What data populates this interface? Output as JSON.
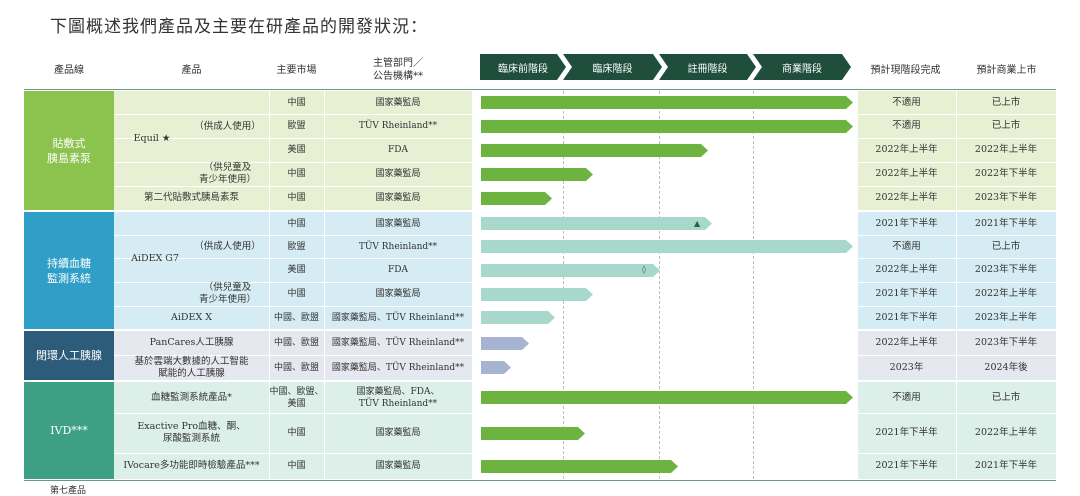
{
  "title": "下圖概述我們產品及主要在研產品的開發狀況：",
  "headers": {
    "product_line": "產品線",
    "product": "產品",
    "market": "主要市場",
    "authority": "主管部門／\n公告機構**",
    "current_stage": "預計現階段完成",
    "commercial": "預計商業上市"
  },
  "stages": [
    "臨床前階段",
    "臨床階段",
    "註冊階段",
    "商業階段"
  ],
  "colors": {
    "group1": "#8cc24e",
    "group2": "#2f9fc8",
    "group3": "#2d5b7a",
    "group4": "#3c9f86",
    "bar1": "#6cb43f",
    "bar2": "#a8d8cc",
    "bar3": "#a6b4d1",
    "bar4": "#6cb43f",
    "row1": "#e8f0d4",
    "row2": "#d5ecf4",
    "row3": "#e6e8ef",
    "row4": "#dcefe8",
    "stage": "#1f4e3d"
  },
  "groups": [
    {
      "name": "貼敷式\n胰島素泵"
    },
    {
      "name": "持續血糖\n監測系統"
    },
    {
      "name": "閉環人工胰腺"
    },
    {
      "name": "IVD***"
    }
  ],
  "products": {
    "equil": "Equil ★",
    "adult": "（供成人使用）",
    "child": "（供兒童及\n青少年使用）",
    "gen2": "第二代貼敷式胰島素泵",
    "aidex_g7": "AiDEX G7",
    "aidex_x": "AiDEX X",
    "pancares": "PanCares人工胰腺",
    "ai_pancreas": "基於雲端大數據的人工智能\n賦能的人工胰腺",
    "glucose": "血糖監測系統產品*",
    "exactive": "Exactive Pro血糖、酮、\n尿酸監測系統",
    "ivocare": "IVocare多功能即時檢驗產品***"
  },
  "rows": [
    {
      "market": "中國",
      "authority": "國家藥監局",
      "stage_progress": 1.0,
      "completion": "不適用",
      "launch": "已上市"
    },
    {
      "market": "歐盟",
      "authority": "TÜV Rheinland**",
      "stage_progress": 1.0,
      "completion": "不適用",
      "launch": "已上市"
    },
    {
      "market": "美國",
      "authority": "FDA",
      "stage_progress": 0.61,
      "completion": "2022年上半年",
      "launch": "2022年上半年"
    },
    {
      "market": "中國",
      "authority": "國家藥監局",
      "stage_progress": 0.3,
      "completion": "2022年上半年",
      "launch": "2022年下半年"
    },
    {
      "market": "中國",
      "authority": "國家藥監局",
      "stage_progress": 0.19,
      "completion": "2022年上半年",
      "launch": "2023年下半年"
    },
    {
      "market": "中國",
      "authority": "國家藥監局",
      "stage_progress": 0.62,
      "completion": "2021年下半年",
      "launch": "2021年下半年",
      "marker": "▲"
    },
    {
      "market": "歐盟",
      "authority": "TÜV Rheinland**",
      "stage_progress": 1.0,
      "completion": "不適用",
      "launch": "已上市"
    },
    {
      "market": "美國",
      "authority": "FDA",
      "stage_progress": 0.48,
      "completion": "2022年上半年",
      "launch": "2023年下半年",
      "marker": "◊"
    },
    {
      "market": "中國",
      "authority": "國家藥監局",
      "stage_progress": 0.3,
      "completion": "2021年下半年",
      "launch": "2022年上半年"
    },
    {
      "market": "中國、歐盟",
      "authority": "國家藥監局、TÜV Rheinland**",
      "stage_progress": 0.2,
      "completion": "2021年下半年",
      "launch": "2023年上半年"
    },
    {
      "market": "中國、歐盟",
      "authority": "國家藥監局、TÜV Rheinland**",
      "stage_progress": 0.13,
      "completion": "2022年上半年",
      "launch": "2023年下半年"
    },
    {
      "market": "中國、歐盟",
      "authority": "國家藥監局、TÜV Rheinland**",
      "stage_progress": 0.08,
      "completion": "2023年",
      "launch": "2024年後"
    },
    {
      "market": "中國、歐盟、\n美國",
      "authority": "國家藥監局、FDA、\nTÜV Rheinland**",
      "stage_progress": 1.0,
      "completion": "不適用",
      "launch": "已上市"
    },
    {
      "market": "中國",
      "authority": "國家藥監局",
      "stage_progress": 0.28,
      "completion": "2021年下半年",
      "launch": "2022年上半年"
    },
    {
      "market": "中國",
      "authority": "國家藥監局",
      "stage_progress": 0.53,
      "completion": "2021年下半年",
      "launch": "2021年下半年"
    }
  ],
  "footer": "第七產品"
}
